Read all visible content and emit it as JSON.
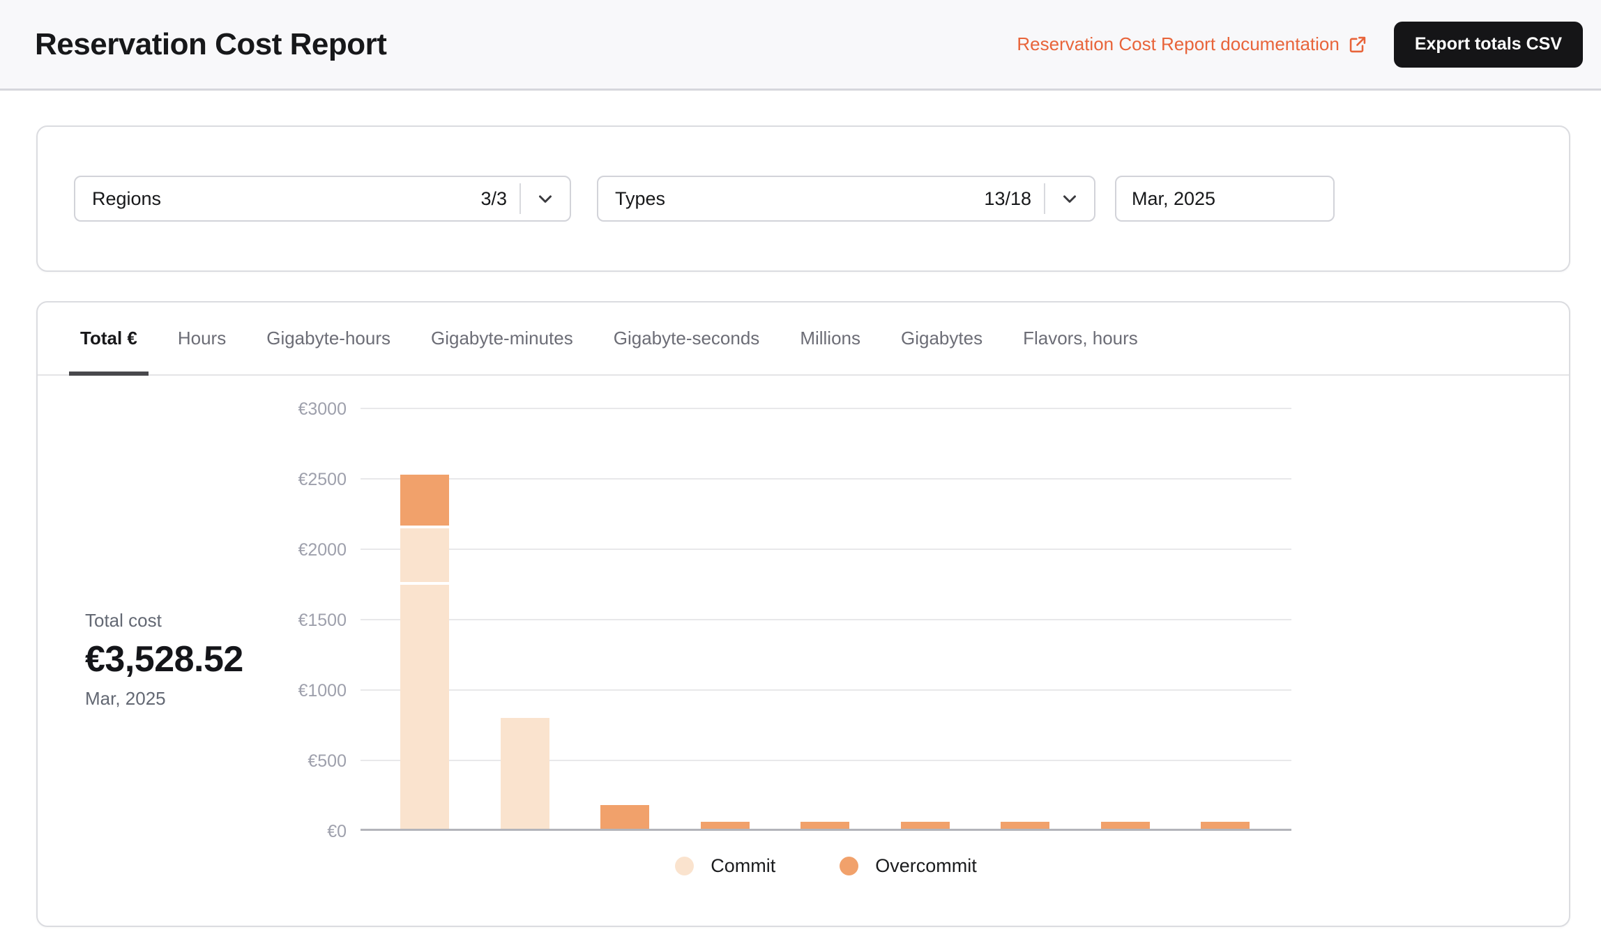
{
  "header": {
    "title": "Reservation Cost Report",
    "doc_link_label": "Reservation Cost Report documentation",
    "export_button_label": "Export totals CSV",
    "accent_color": "#e8643a",
    "icons": [
      "external-link-icon",
      "chevron-down-icon"
    ]
  },
  "filters": {
    "regions": {
      "label": "Regions",
      "count": "3/3"
    },
    "types": {
      "label": "Types",
      "count": "13/18"
    },
    "month": {
      "value": "Mar, 2025"
    }
  },
  "tabs": [
    {
      "id": "total-eur",
      "label": "Total €",
      "active": true
    },
    {
      "id": "hours",
      "label": "Hours"
    },
    {
      "id": "gigabyte-hours",
      "label": "Gigabyte-hours"
    },
    {
      "id": "gigabyte-minutes",
      "label": "Gigabyte-minutes"
    },
    {
      "id": "gigabyte-seconds",
      "label": "Gigabyte-seconds"
    },
    {
      "id": "millions",
      "label": "Millions"
    },
    {
      "id": "gigabytes",
      "label": "Gigabytes"
    },
    {
      "id": "flavors-hours",
      "label": "Flavors, hours"
    }
  ],
  "summary": {
    "label": "Total cost",
    "amount": "€3,528.52",
    "period": "Mar, 2025"
  },
  "chart_data": {
    "type": "bar",
    "stacked": true,
    "ylim": [
      0,
      3000
    ],
    "ytick_interval": 500,
    "ytick_prefix": "€",
    "x_axis_labels_visible": false,
    "grid": true,
    "legend_position": "bottom-center",
    "colors": {
      "Commit": "#fae3ce",
      "Overcommit": "#f1a16b"
    },
    "legend": [
      {
        "label": "Commit",
        "color": "#fae3ce"
      },
      {
        "label": "Overcommit",
        "color": "#f1a16b"
      }
    ],
    "bars": [
      {
        "segments": [
          {
            "series": "Commit",
            "value": 1743
          },
          {
            "series": "Commit",
            "value": 400
          },
          {
            "series": "Overcommit",
            "value": 372
          }
        ]
      },
      {
        "segments": [
          {
            "series": "Commit",
            "value": 785
          }
        ]
      },
      {
        "segments": [
          {
            "series": "Overcommit",
            "value": 170
          }
        ]
      },
      {
        "segments": [
          {
            "series": "Overcommit",
            "value": 50
          }
        ]
      },
      {
        "segments": [
          {
            "series": "Overcommit",
            "value": 50
          }
        ]
      },
      {
        "segments": [
          {
            "series": "Overcommit",
            "value": 50
          }
        ]
      },
      {
        "segments": [
          {
            "series": "Overcommit",
            "value": 50
          }
        ]
      },
      {
        "segments": [
          {
            "series": "Overcommit",
            "value": 50
          }
        ]
      },
      {
        "segments": [
          {
            "series": "Overcommit",
            "value": 50
          }
        ]
      }
    ]
  }
}
